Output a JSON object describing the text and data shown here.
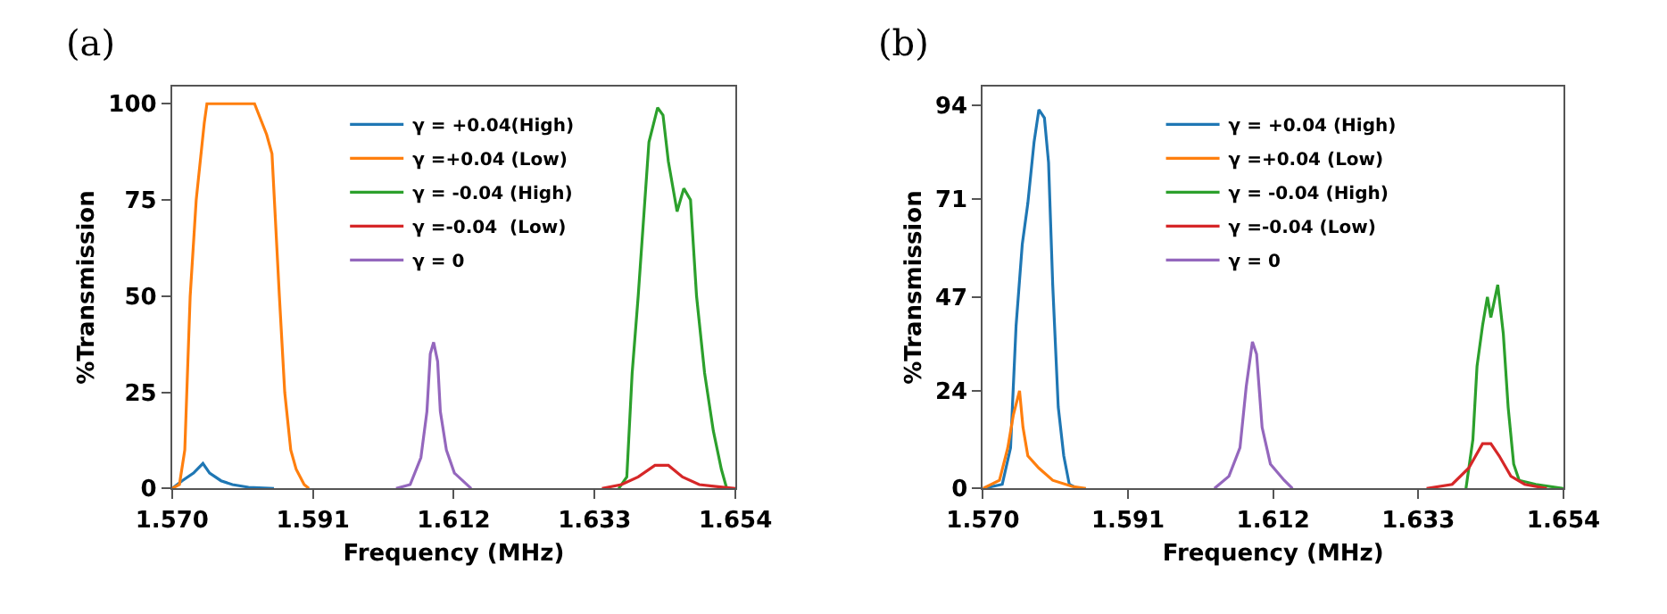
{
  "chart_data": [
    {
      "type": "line",
      "title": "(a)",
      "xlabel": "Frequency (MHz)",
      "ylabel": "%Transmission",
      "xlim": [
        1.57,
        1.654
      ],
      "ylim": [
        0,
        104.5
      ],
      "xticks": [
        {
          "value": 1.57,
          "label": "1.570"
        },
        1.591,
        1.612,
        1.633,
        1.654
      ],
      "yticks": [
        0,
        25,
        50,
        75,
        100
      ],
      "legend": "top",
      "marker": "none",
      "line_style": "solid",
      "series": [
        {
          "name": "γ = +0.04(High)",
          "color": "#1f77b4",
          "x": [
            1.57,
            1.5715,
            1.5732,
            1.5746,
            1.5756,
            1.5773,
            1.579,
            1.5814,
            1.5852
          ],
          "values": [
            0,
            2,
            4,
            6.5,
            4,
            2,
            1,
            0.3,
            0
          ]
        },
        {
          "name": "γ =+0.04 (Low)",
          "color": "#ff7f0e",
          "x": [
            1.57,
            1.5711,
            1.5719,
            1.5727,
            1.5736,
            1.5748,
            1.5752,
            1.5823,
            1.5841,
            1.5849,
            1.586,
            1.5868,
            1.5877,
            1.5885,
            1.5897,
            1.5904
          ],
          "values": [
            0,
            1,
            10,
            50,
            75,
            95,
            100,
            100,
            92,
            87,
            50,
            25,
            10,
            5,
            1,
            0
          ]
        },
        {
          "name": "γ = -0.04 (High)",
          "color": "#2ca02c",
          "x": [
            1.6366,
            1.6378,
            1.6386,
            1.6395,
            1.6403,
            1.6411,
            1.6424,
            1.6432,
            1.644,
            1.6453,
            1.6463,
            1.6473,
            1.6482,
            1.6494,
            1.6507,
            1.6519,
            1.6527
          ],
          "values": [
            0,
            3,
            30,
            50,
            70,
            90,
            99,
            97,
            85,
            72,
            78,
            75,
            50,
            30,
            15,
            5,
            0
          ]
        },
        {
          "name": "γ =-0.04  (Low)",
          "color": "#d62728",
          "x": [
            1.6341,
            1.637,
            1.6395,
            1.642,
            1.644,
            1.6461,
            1.6486,
            1.6511,
            1.654
          ],
          "values": [
            0,
            1,
            3,
            6,
            6,
            3,
            1,
            0.5,
            0
          ]
        },
        {
          "name": "γ = 0",
          "color": "#9467bd",
          "x": [
            1.6034,
            1.6055,
            1.6071,
            1.608,
            1.6085,
            1.609,
            1.6096,
            1.61,
            1.6109,
            1.6121,
            1.6146
          ],
          "values": [
            0,
            1,
            8,
            20,
            35,
            38,
            33,
            20,
            10,
            4,
            0
          ]
        }
      ]
    },
    {
      "type": "line",
      "title": "(b)",
      "xlabel": "Frequency (MHz)",
      "ylabel": "%Transmission",
      "xlim": [
        1.57,
        1.654
      ],
      "ylim": [
        0,
        98.7
      ],
      "xticks": [
        {
          "value": 1.57,
          "label": "1.570"
        },
        1.591,
        1.612,
        1.633,
        1.654
      ],
      "yticks": [
        0,
        24,
        47,
        71,
        94
      ],
      "legend": "top",
      "marker": "none",
      "line_style": "solid",
      "series": [
        {
          "name": "γ = +0.04 (High)",
          "color": "#1f77b4",
          "x": [
            1.57,
            1.5728,
            1.574,
            1.5748,
            1.5757,
            1.5765,
            1.5774,
            1.5781,
            1.5789,
            1.5795,
            1.5801,
            1.5809,
            1.5817,
            1.5825,
            1.5837
          ],
          "values": [
            0,
            1,
            10,
            40,
            60,
            70,
            85,
            93,
            91,
            80,
            50,
            20,
            8,
            1,
            0
          ]
        },
        {
          "name": "γ =+0.04 (Low)",
          "color": "#ff7f0e",
          "x": [
            1.57,
            1.5724,
            1.5736,
            1.5744,
            1.5753,
            1.5758,
            1.5765,
            1.5781,
            1.5801,
            1.5829,
            1.5849
          ],
          "values": [
            0,
            2,
            10,
            18,
            24,
            15,
            8,
            5,
            2,
            0.5,
            0
          ]
        },
        {
          "name": "γ = -0.04 (High)",
          "color": "#2ca02c",
          "x": [
            1.6399,
            1.6409,
            1.6415,
            1.6423,
            1.643,
            1.6435,
            1.6445,
            1.6453,
            1.646,
            1.6468,
            1.6476,
            1.65,
            1.654
          ],
          "values": [
            0,
            12,
            30,
            40,
            47,
            42,
            50,
            38,
            20,
            6,
            2,
            1,
            0
          ]
        },
        {
          "name": "γ =-0.04 (Low)",
          "color": "#d62728",
          "x": [
            1.6342,
            1.6379,
            1.6403,
            1.6423,
            1.6435,
            1.6447,
            1.6464,
            1.6484,
            1.6516
          ],
          "values": [
            0,
            1,
            5,
            11,
            11,
            8,
            3,
            1,
            0
          ]
        },
        {
          "name": "γ = 0",
          "color": "#9467bd",
          "x": [
            1.6035,
            1.6056,
            1.6072,
            1.6081,
            1.609,
            1.6096,
            1.6104,
            1.6116,
            1.6136,
            1.6148
          ],
          "values": [
            0,
            3,
            10,
            25,
            36,
            33,
            15,
            6,
            2,
            0
          ]
        }
      ]
    }
  ]
}
